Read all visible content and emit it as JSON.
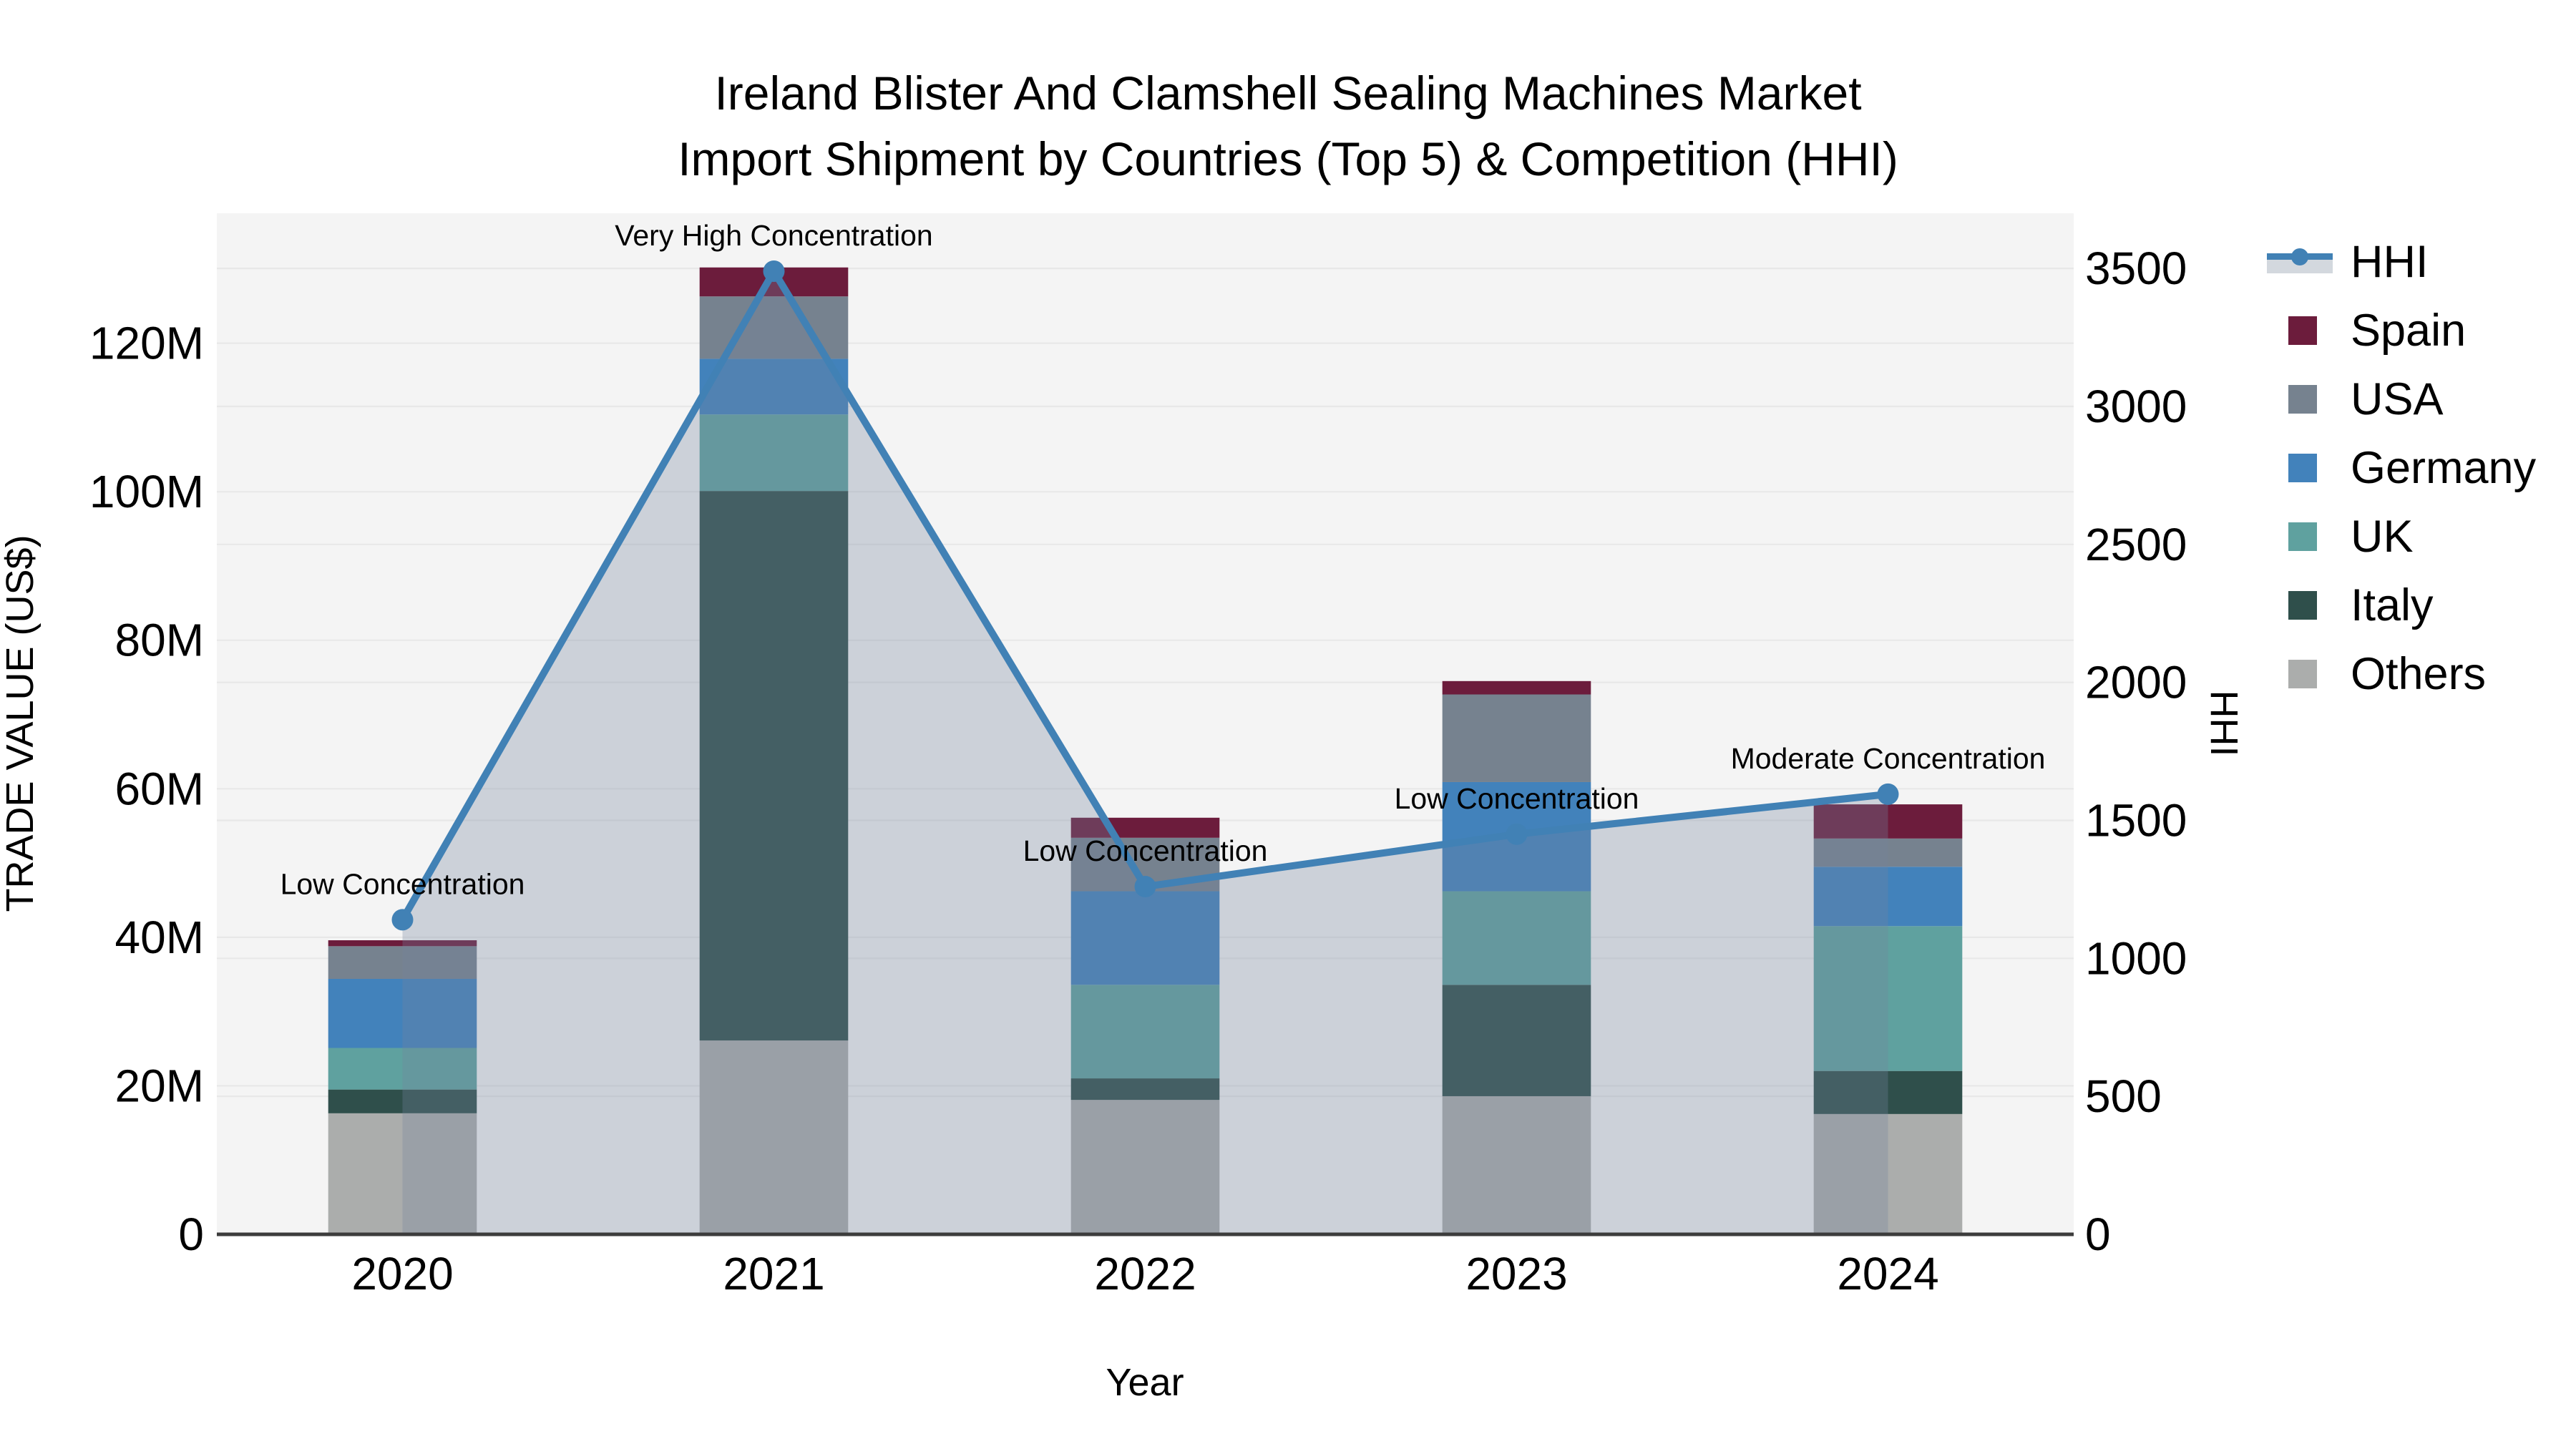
{
  "title": {
    "line1": "Ireland Blister And Clamshell Sealing Machines Market",
    "line2": "Import Shipment by Countries (Top 5) & Competition (HHI)"
  },
  "legend": {
    "items": [
      "HHI",
      "Spain",
      "USA",
      "Germany",
      "UK",
      "Italy",
      "Others"
    ]
  },
  "chart_data": {
    "type": "stacked-bar+line",
    "title": "Ireland Blister And Clamshell Sealing Machines Market — Import Shipment by Countries (Top 5) & Competition (HHI)",
    "categories": [
      "2020",
      "2021",
      "2022",
      "2023",
      "2024"
    ],
    "values_unit": "million US$",
    "series": [
      {
        "name": "Spain",
        "color": "#6C1C3C",
        "values": [
          0.8,
          3.9,
          2.7,
          1.8,
          4.6
        ]
      },
      {
        "name": "USA",
        "color": "#76828F",
        "values": [
          4.4,
          8.4,
          7.2,
          11.8,
          3.8
        ]
      },
      {
        "name": "Germany",
        "color": "#4282BB",
        "values": [
          9.3,
          7.5,
          12.6,
          14.7,
          8.0
        ]
      },
      {
        "name": "UK",
        "color": "#5FA19F",
        "values": [
          5.6,
          10.3,
          12.6,
          12.6,
          19.5
        ]
      },
      {
        "name": "Italy",
        "color": "#2F4F4B",
        "values": [
          3.2,
          74.0,
          2.9,
          15.0,
          5.8
        ]
      },
      {
        "name": "Others",
        "color": "#ABADAC",
        "values": [
          16.3,
          26.1,
          18.1,
          18.6,
          16.2
        ]
      }
    ],
    "stack_note": "bars stack bottom-to-top as Others, Italy, UK, Germany, USA, Spain",
    "bar_totals": [
      39.6,
      130.2,
      56.1,
      74.5,
      57.9
    ],
    "line_series": {
      "name": "HHI",
      "color": "#4181B5",
      "fill_color": "rgba(116,132,158,0.31)",
      "marker_color": "#4181B5",
      "values": [
        1140,
        3490,
        1260,
        1450,
        1595
      ]
    },
    "annotations": [
      {
        "category": "2020",
        "text": "Low Concentration"
      },
      {
        "category": "2021",
        "text": "Very High Concentration"
      },
      {
        "category": "2022",
        "text": "Low Concentration"
      },
      {
        "category": "2023",
        "text": "Low Concentration"
      },
      {
        "category": "2024",
        "text": "Moderate Concentration"
      }
    ],
    "xlabel": "Year",
    "ylabel": "TRADE VALUE (US$)",
    "y2label": "HHI",
    "left_axis": {
      "ticks": [
        "0",
        "20M",
        "40M",
        "60M",
        "80M",
        "100M",
        "120M"
      ],
      "tick_values": [
        0,
        20,
        40,
        60,
        80,
        100,
        120
      ],
      "range": [
        0,
        137.5
      ]
    },
    "right_axis": {
      "ticks": [
        "0",
        "500",
        "1000",
        "1500",
        "2000",
        "2500",
        "3000",
        "3500"
      ],
      "tick_values": [
        0,
        500,
        1000,
        1500,
        2000,
        2500,
        3000,
        3500
      ],
      "range": [
        0,
        3700
      ]
    },
    "grid": true,
    "plot_background": "#F4F4F4",
    "gridline_color": "#E8E8E8",
    "axis_line_color": "#3C3C3C",
    "legend_position": "right"
  }
}
